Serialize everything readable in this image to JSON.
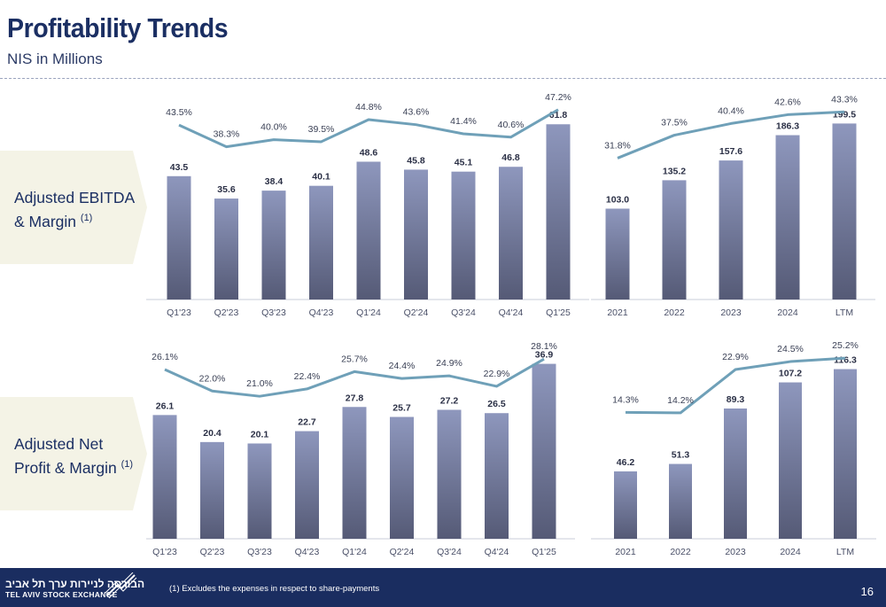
{
  "header": {
    "title": "Profitability Trends",
    "subtitle": "NIS in Millions"
  },
  "rows": [
    {
      "label_line1": "Adjusted EBITDA",
      "label_line2": "& Margin",
      "label_sup": "(1)"
    },
    {
      "label_line1": "Adjusted Net",
      "label_line2": "Profit & Margin",
      "label_sup": "(1)"
    }
  ],
  "footer": {
    "logo_hebrew": "הבורסה לניירות ערך תל אביב",
    "logo_english": "TEL AVIV STOCK EXCHANGE",
    "footnote": "(1) Excludes the expenses in respect to share-payments",
    "page_number": "16"
  },
  "colors": {
    "bar_top": "#8e97bd",
    "bar_bottom": "#555a76",
    "line": "#6fa0b8",
    "footer_bg": "#1a2d60",
    "title": "#1b2f63"
  },
  "chart_data": [
    {
      "type": "bar",
      "name": "ebitda-quarterly",
      "categories": [
        "Q1'23",
        "Q2'23",
        "Q3'23",
        "Q4'23",
        "Q1'24",
        "Q2'24",
        "Q3'24",
        "Q4'24",
        "Q1'25"
      ],
      "values": [
        43.5,
        35.6,
        38.4,
        40.1,
        48.6,
        45.8,
        45.1,
        46.8,
        61.8
      ],
      "value_labels": [
        "43.5",
        "35.6",
        "38.4",
        "40.1",
        "48.6",
        "45.8",
        "45.1",
        "46.8",
        "61.8"
      ],
      "margin": [
        43.5,
        38.3,
        40.0,
        39.5,
        44.8,
        43.6,
        41.4,
        40.6,
        47.2
      ],
      "margin_labels": [
        "43.5%",
        "38.3%",
        "40.0%",
        "39.5%",
        "44.8%",
        "43.6%",
        "41.4%",
        "40.6%",
        "47.2%"
      ],
      "ylim": [
        0,
        70
      ],
      "margin_lim": [
        28,
        48
      ]
    },
    {
      "type": "bar",
      "name": "ebitda-annual",
      "categories": [
        "2021",
        "2022",
        "2023",
        "2024",
        "LTM"
      ],
      "values": [
        103.0,
        135.2,
        157.6,
        186.3,
        199.5
      ],
      "value_labels": [
        "103.0",
        "135.2",
        "157.6",
        "186.3",
        "199.5"
      ],
      "margin": [
        31.8,
        37.5,
        40.4,
        42.6,
        43.3
      ],
      "margin_labels": [
        "31.8%",
        "37.5%",
        "40.4%",
        "42.6%",
        "43.3%"
      ],
      "ylim": [
        0,
        225
      ],
      "margin_lim": [
        20,
        46
      ]
    },
    {
      "type": "bar",
      "name": "netprofit-quarterly",
      "categories": [
        "Q1'23",
        "Q2'23",
        "Q3'23",
        "Q4'23",
        "Q1'24",
        "Q2'24",
        "Q3'24",
        "Q4'24",
        "Q1'25"
      ],
      "values": [
        26.1,
        20.4,
        20.1,
        22.7,
        27.8,
        25.7,
        27.2,
        26.5,
        36.9
      ],
      "value_labels": [
        "26.1",
        "20.4",
        "20.1",
        "22.7",
        "27.8",
        "25.7",
        "27.2",
        "26.5",
        "36.9"
      ],
      "margin": [
        26.1,
        22.0,
        21.0,
        22.4,
        25.7,
        24.4,
        24.9,
        22.9,
        28.1
      ],
      "margin_labels": [
        "26.1%",
        "22.0%",
        "21.0%",
        "22.4%",
        "25.7%",
        "24.4%",
        "24.9%",
        "22.9%",
        "28.1%"
      ],
      "ylim": [
        0,
        40
      ],
      "margin_lim": [
        8,
        30
      ]
    },
    {
      "type": "bar",
      "name": "netprofit-annual",
      "categories": [
        "2021",
        "2022",
        "2023",
        "2024",
        "LTM"
      ],
      "values": [
        46.2,
        51.3,
        89.3,
        107.2,
        116.3
      ],
      "value_labels": [
        "46.2",
        "51.3",
        "89.3",
        "107.2",
        "116.3"
      ],
      "margin": [
        14.3,
        14.2,
        22.9,
        24.5,
        25.2
      ],
      "margin_labels": [
        "14.3%",
        "14.2%",
        "22.9%",
        "24.5%",
        "25.2%"
      ],
      "ylim": [
        0,
        130
      ],
      "margin_lim": [
        6,
        27
      ]
    }
  ]
}
